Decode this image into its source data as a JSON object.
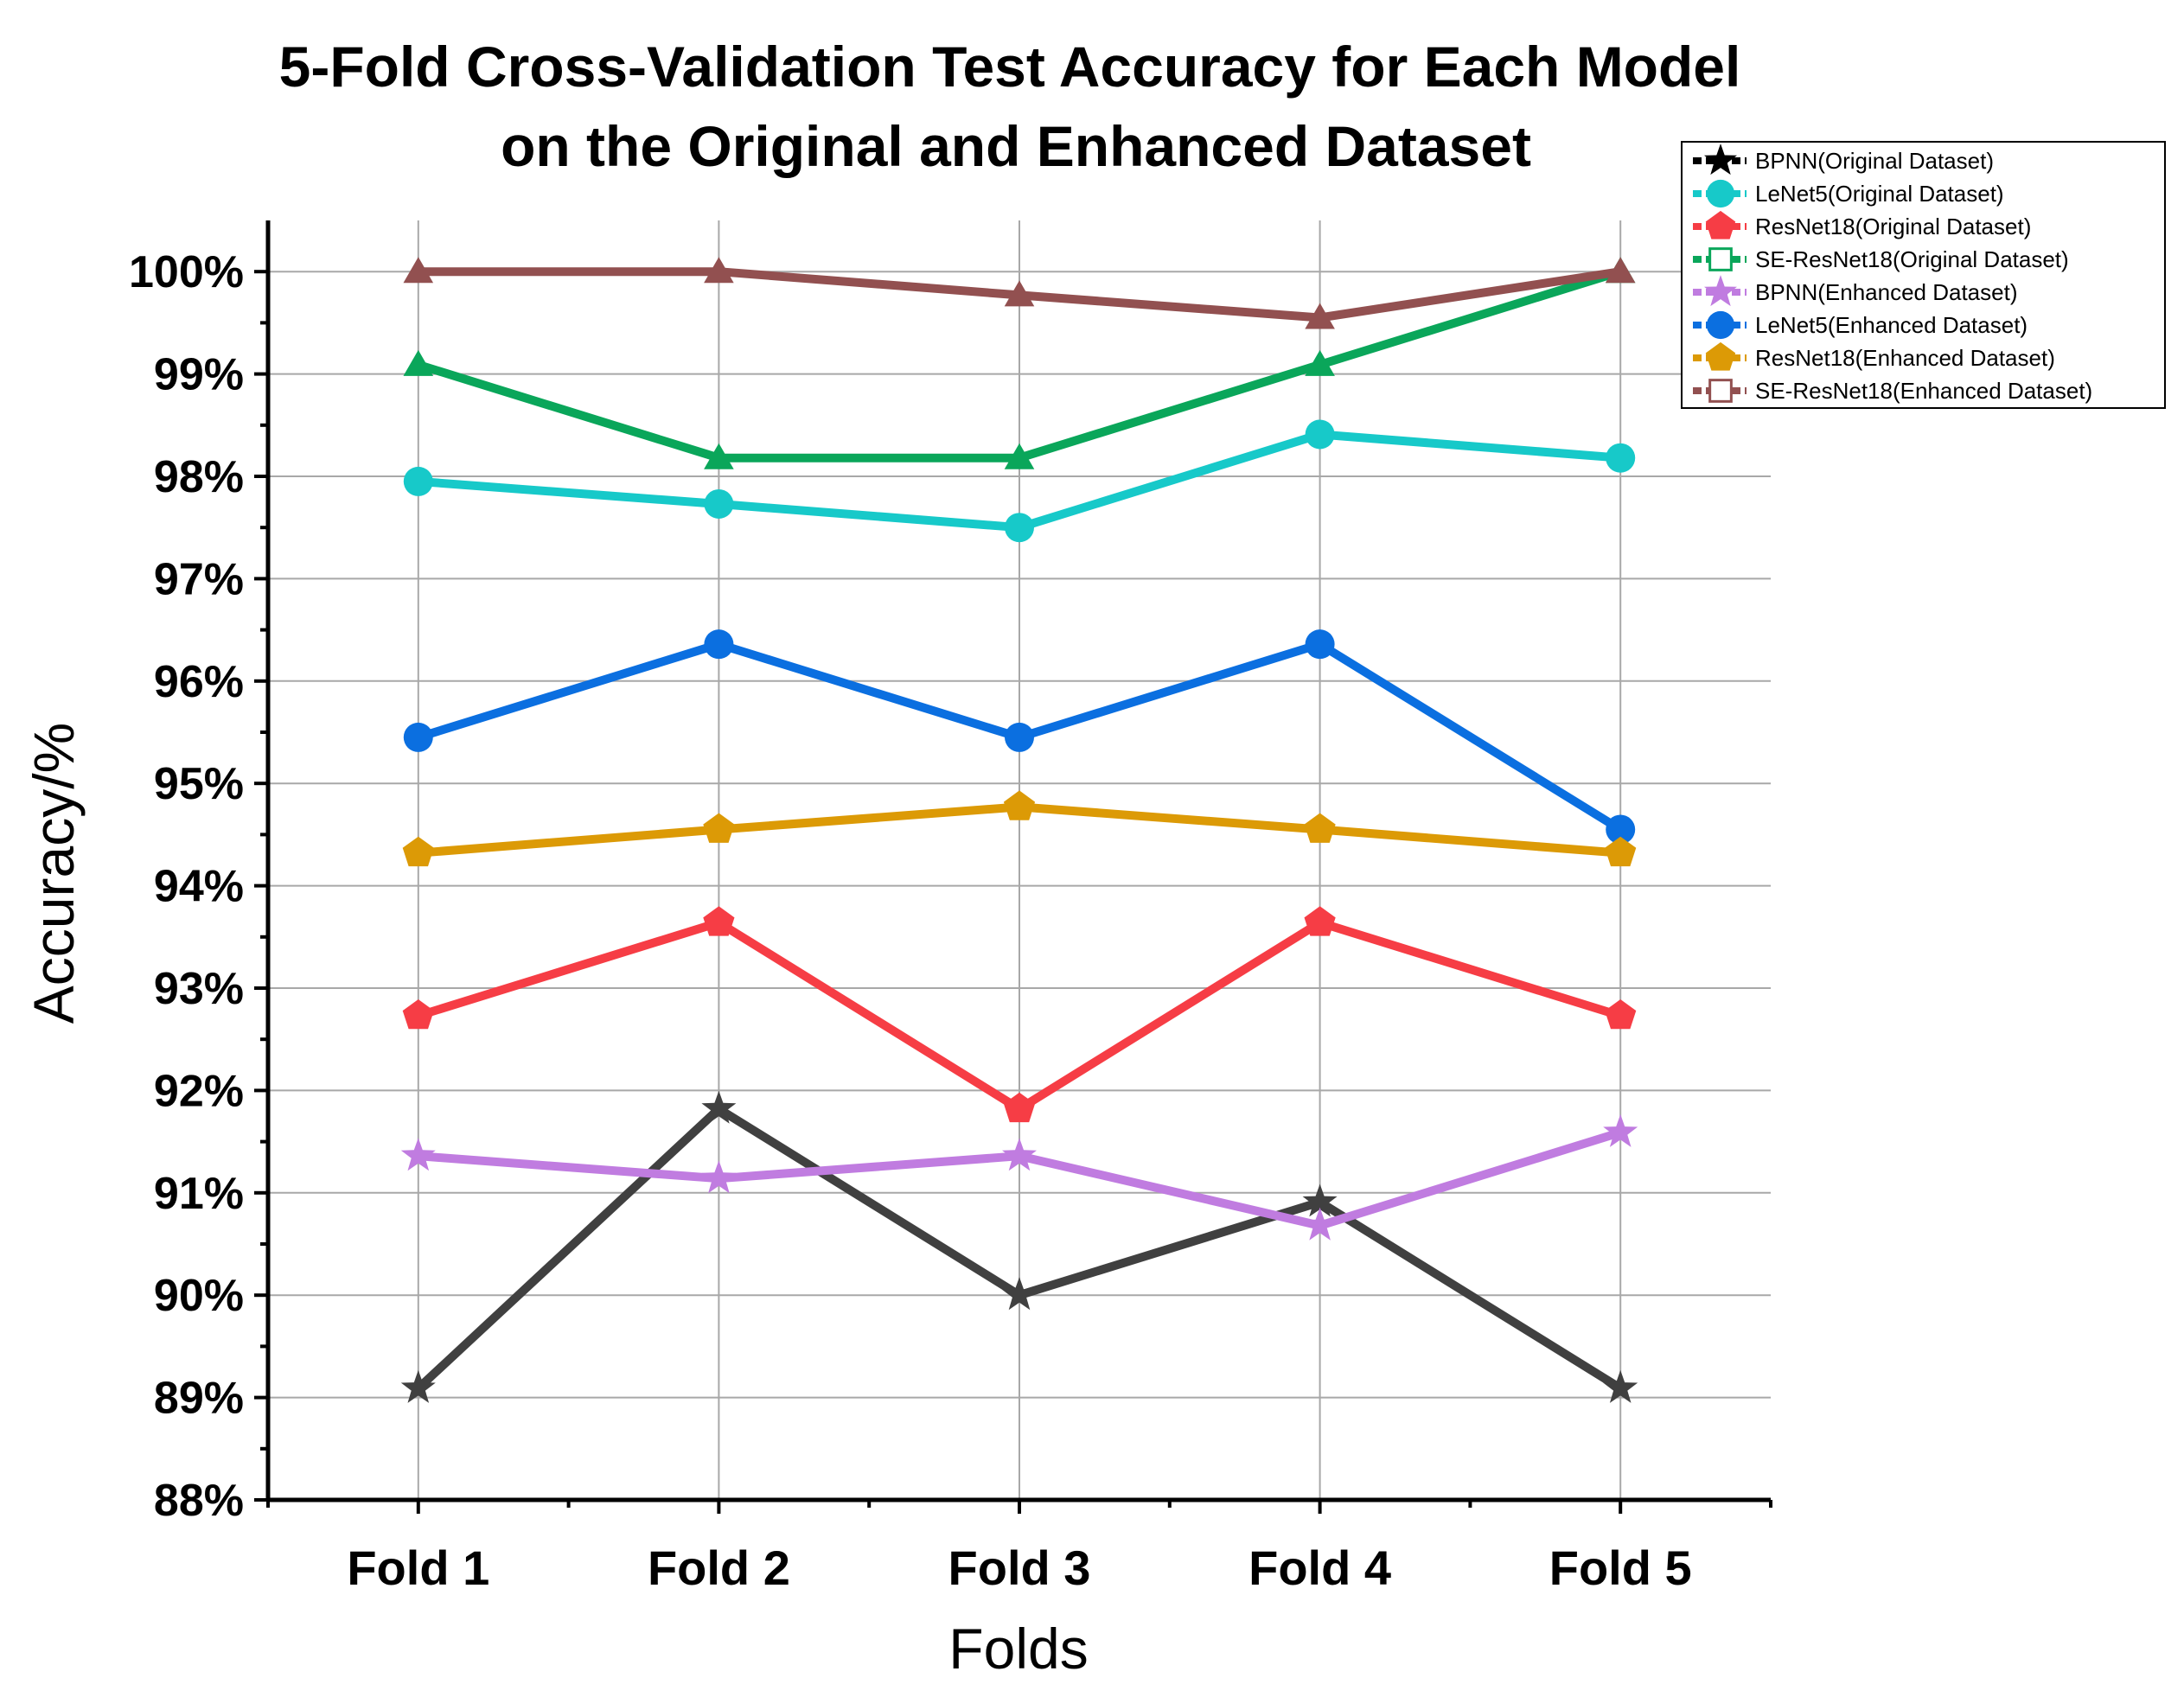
{
  "chart_data": {
    "type": "line",
    "title": [
      "5-Fold Cross-Validation Test Accuracy for Each Model",
      "on the Original and Enhanced Dataset"
    ],
    "xlabel": "Folds",
    "ylabel": "Accuracy/%",
    "categories": [
      "Fold 1",
      "Fold 2",
      "Fold 3",
      "Fold 4",
      "Fold 5"
    ],
    "ylim": [
      88,
      100.5
    ],
    "yticks": [
      88,
      89,
      90,
      91,
      92,
      93,
      94,
      95,
      96,
      97,
      98,
      99,
      100
    ],
    "ytick_labels": [
      "88%",
      "89%",
      "90%",
      "91%",
      "92%",
      "93%",
      "94%",
      "95%",
      "96%",
      "97%",
      "98%",
      "99%",
      "100%"
    ],
    "grid": true,
    "legend_position": "top-right",
    "series": [
      {
        "name": "BPNN(Original Dataset)",
        "color": "#404040",
        "legend_color": "#000000",
        "marker": "star",
        "values": [
          89.09,
          91.82,
          90.0,
          90.91,
          89.09
        ]
      },
      {
        "name": "LeNet5(Original Dataset)",
        "color": "#17c9c9",
        "marker": "circle",
        "values": [
          97.95,
          97.73,
          97.5,
          98.41,
          98.18
        ]
      },
      {
        "name": "ResNet18(Original Dataset)",
        "color": "#f63d45",
        "marker": "pentagon",
        "values": [
          92.73,
          93.64,
          91.82,
          93.64,
          92.73
        ]
      },
      {
        "name": "SE-ResNet18(Original Dataset)",
        "color": "#0aa65a",
        "marker": "triangle",
        "legend_marker": "square-open",
        "values": [
          99.09,
          98.18,
          98.18,
          99.09,
          100.0
        ]
      },
      {
        "name": "BPNN(Enhanced Dataset)",
        "color": "#c07ce0",
        "marker": "star",
        "values": [
          91.36,
          91.14,
          91.36,
          90.68,
          91.59
        ]
      },
      {
        "name": "LeNet5(Enhanced Dataset)",
        "color": "#0b6fe0",
        "marker": "circle",
        "values": [
          95.45,
          96.36,
          95.45,
          96.36,
          94.55
        ]
      },
      {
        "name": "ResNet18(Enhanced Dataset)",
        "color": "#dc9a06",
        "marker": "pentagon",
        "values": [
          94.32,
          94.55,
          94.77,
          94.55,
          94.32
        ]
      },
      {
        "name": "SE-ResNet18(Enhanced Dataset)",
        "color": "#925050",
        "marker": "triangle",
        "legend_marker": "square-open",
        "values": [
          100.0,
          100.0,
          99.77,
          99.55,
          100.0
        ]
      }
    ]
  }
}
